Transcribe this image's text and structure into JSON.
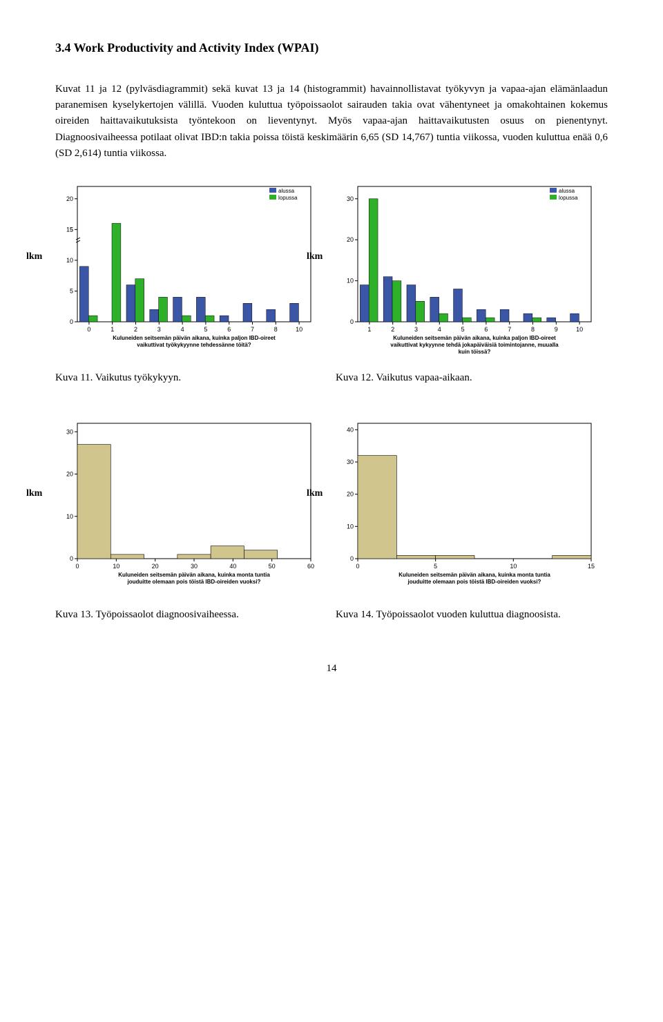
{
  "section_title": "3.4 Work Productivity and Activity Index (WPAI)",
  "paragraph": "Kuvat 11 ja 12 (pylväsdiagrammit) sekä kuvat 13 ja 14 (histogrammit) havainnollistavat työkyvyn ja vapaa-ajan elämänlaadun paranemisen kyselykertojen välillä. Vuoden kuluttua työpoissaolot sairauden takia ovat vähentyneet ja omakohtainen kokemus oireiden haittavaikutuksista työntekoon on lieventynyt. Myös vapaa-ajan haittavaikutusten osuus on pienentynyt. Diagnoosivaiheessa potilaat olivat IBD:n takia poissa töistä keskimäärin 6,65 (SD 14,767) tuntia viikossa, vuoden kuluttua enää 0,6 (SD 2,614) tuntia viikossa.",
  "y_label_outer": "lkm",
  "legend": {
    "alussa": "alussa",
    "lopussa": "lopussa"
  },
  "colors": {
    "blue": "#3b56a6",
    "green": "#2fb029",
    "tan": "#cfc58d",
    "axis": "#000000",
    "bg": "#ffffff",
    "frame": "#000000"
  },
  "chart11": {
    "categories": [
      "0",
      "1",
      "2",
      "3",
      "4",
      "5",
      "6",
      "7",
      "8",
      "10"
    ],
    "alussa": [
      9,
      0,
      6,
      2,
      4,
      4,
      1,
      3,
      2,
      3
    ],
    "lopussa": [
      1,
      16,
      7,
      4,
      1,
      1,
      0,
      0,
      0,
      0
    ],
    "yticks": [
      0,
      5,
      10,
      15,
      20
    ],
    "ymax": 22,
    "show5_tick": true,
    "ytick_after_break": 5,
    "xlabel": "Kuluneiden seitsemän päivän aikana, kuinka paljon IBD-oireet vaikuttivat työkykyynne tehdessänne töitä?"
  },
  "chart12": {
    "categories": [
      "1",
      "2",
      "3",
      "4",
      "5",
      "6",
      "7",
      "8",
      "9",
      "10"
    ],
    "alussa": [
      9,
      11,
      9,
      6,
      8,
      3,
      3,
      2,
      1,
      2
    ],
    "lopussa": [
      30,
      10,
      5,
      2,
      1,
      1,
      0,
      1,
      0,
      0
    ],
    "yticks": [
      0,
      10,
      20,
      30
    ],
    "ymax": 33,
    "xlabel": "Kuluneiden seitsemän päivän aikana, kuinka paljon IBD-oireet vaikuttivat kykyynne tehdä jokapäiväisiä toimintojanne, muualla kuin töissä?"
  },
  "chart13": {
    "bins_x": [
      0,
      10,
      20,
      30,
      40,
      50,
      60
    ],
    "heights": [
      27,
      1,
      0,
      1,
      3,
      2,
      0
    ],
    "yticks": [
      0,
      10,
      20,
      30
    ],
    "ymax": 32,
    "xlabel": "Kuluneiden seitsemän päivän aikana, kuinka monta tuntia jouduitte olemaan pois töistä IBD-oireiden vuoksi?"
  },
  "chart14": {
    "bins_x": [
      0,
      5,
      10,
      15
    ],
    "heights": [
      32,
      1,
      1,
      0,
      0,
      1
    ],
    "yticks": [
      0,
      10,
      20,
      30,
      40
    ],
    "ymax": 42,
    "xlabel": "Kuluneiden seitsemän päivän aikana, kuinka monta tuntia jouduitte olemaan pois töistä IBD-oireiden vuoksi?"
  },
  "captions": {
    "c11": "Kuva 11. Vaikutus työkykyyn.",
    "c12": "Kuva 12. Vaikutus vapaa-aikaan.",
    "c13": "Kuva 13. Työpoissaolot diagnoosivaiheessa.",
    "c14": "Kuva 14. Työpoissaolot vuoden kuluttua diagnoosista."
  },
  "page_number": "14"
}
